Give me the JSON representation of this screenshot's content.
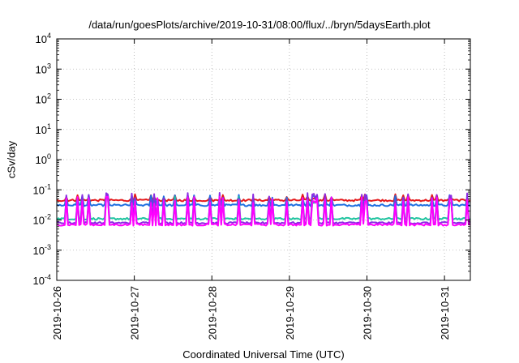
{
  "chart_data": {
    "type": "line",
    "title": "/data/run/goesPlots/archive/2019-10-31/08:00/flux/../bryn/5daysEarth.plot",
    "xlabel": "Coordinated Universal Time (UTC)",
    "ylabel": "cSv/day",
    "yscale": "log",
    "ylim": [
      0.0001,
      10000
    ],
    "yticks": [
      {
        "value": 0.0001,
        "base": "10",
        "exp": "-4"
      },
      {
        "value": 0.001,
        "base": "10",
        "exp": "-3"
      },
      {
        "value": 0.01,
        "base": "10",
        "exp": "-2"
      },
      {
        "value": 0.1,
        "base": "10",
        "exp": "-1"
      },
      {
        "value": 1,
        "base": "10",
        "exp": "0"
      },
      {
        "value": 10,
        "base": "10",
        "exp": "1"
      },
      {
        "value": 100,
        "base": "10",
        "exp": "2"
      },
      {
        "value": 1000,
        "base": "10",
        "exp": "3"
      },
      {
        "value": 10000,
        "base": "10",
        "exp": "4"
      }
    ],
    "xlim": [
      "2019-10-26",
      "2019-10-31T08:00"
    ],
    "xtick_labels": [
      "2019-10-26",
      "2019-10-27",
      "2019-10-28",
      "2019-10-29",
      "2019-10-30",
      "2019-10-31"
    ],
    "grid": true,
    "legend": "none",
    "series": [
      {
        "color": "#e41a1c",
        "baseline": 0.045,
        "spike": 0.075
      },
      {
        "color": "#1f6fe0",
        "baseline": 0.031,
        "spike": 0.07
      },
      {
        "color": "#1fc4a0",
        "baseline": 0.011,
        "spike": 0.06
      },
      {
        "color": "#8a2be2",
        "baseline": 0.008,
        "spike": 0.08
      },
      {
        "color": "#ff00ff",
        "baseline": 0.007,
        "spike": 0.06
      }
    ]
  }
}
